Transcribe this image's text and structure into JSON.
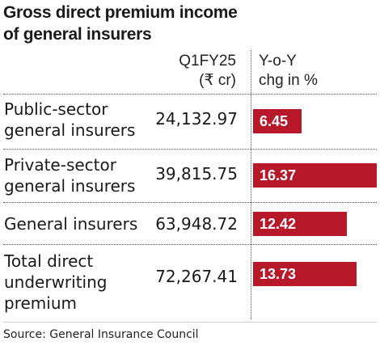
{
  "title_lines": [
    "Gross direct premium income",
    "of general insurers"
  ],
  "col_value_lines": [
    "Q1FY25",
    "(₹ cr)"
  ],
  "col_chg_lines": [
    "Y-o-Y",
    "chg in %"
  ],
  "source": "Source: General Insurance Council",
  "bar_color": "#b7182a",
  "chart_data": {
    "type": "bar",
    "orientation": "horizontal",
    "categories": [
      "Public-sector general insurers",
      "Private-sector general insurers",
      "General insurers",
      "Total direct underwriting premium"
    ],
    "category_lines": [
      [
        "Public-sector",
        "general insurers"
      ],
      [
        "Private-sector",
        "general insurers"
      ],
      [
        "General insurers"
      ],
      [
        "Total direct",
        "underwriting",
        "premium"
      ]
    ],
    "premium_cr": [
      "24,132.97",
      "39,815.75",
      "63,948.72",
      "72,267.41"
    ],
    "series": [
      {
        "values": [
          6.45,
          16.37,
          12.42,
          13.73
        ]
      }
    ],
    "value_labels": [
      "6.45",
      "16.37",
      "12.42",
      "13.73"
    ]
  }
}
